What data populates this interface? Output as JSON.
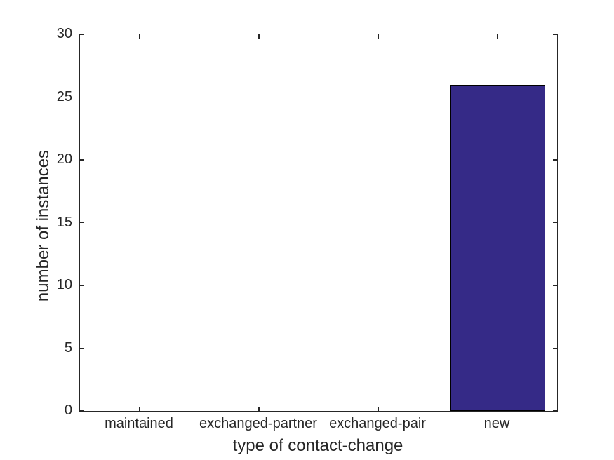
{
  "chart_data": {
    "type": "bar",
    "title": "",
    "xlabel": "type of contact-change",
    "ylabel": "number of instances",
    "categories": [
      "maintained",
      "exchanged-partner",
      "exchanged-pair",
      "new"
    ],
    "values": [
      0,
      0,
      0,
      26
    ],
    "series": [
      {
        "name": "number of instances",
        "values": [
          0,
          0,
          0,
          26
        ]
      }
    ],
    "ylim": [
      0,
      30
    ],
    "yticks": [
      0,
      5,
      10,
      15,
      20,
      25,
      30
    ],
    "bar_width_fraction": 0.8,
    "bar_color": "#352a87",
    "bar_edge_color": "#000000",
    "axis_color": "#262626",
    "background_color": "#ffffff",
    "grid": "off",
    "legend": "none",
    "tick_direction": "in",
    "box": "on"
  }
}
